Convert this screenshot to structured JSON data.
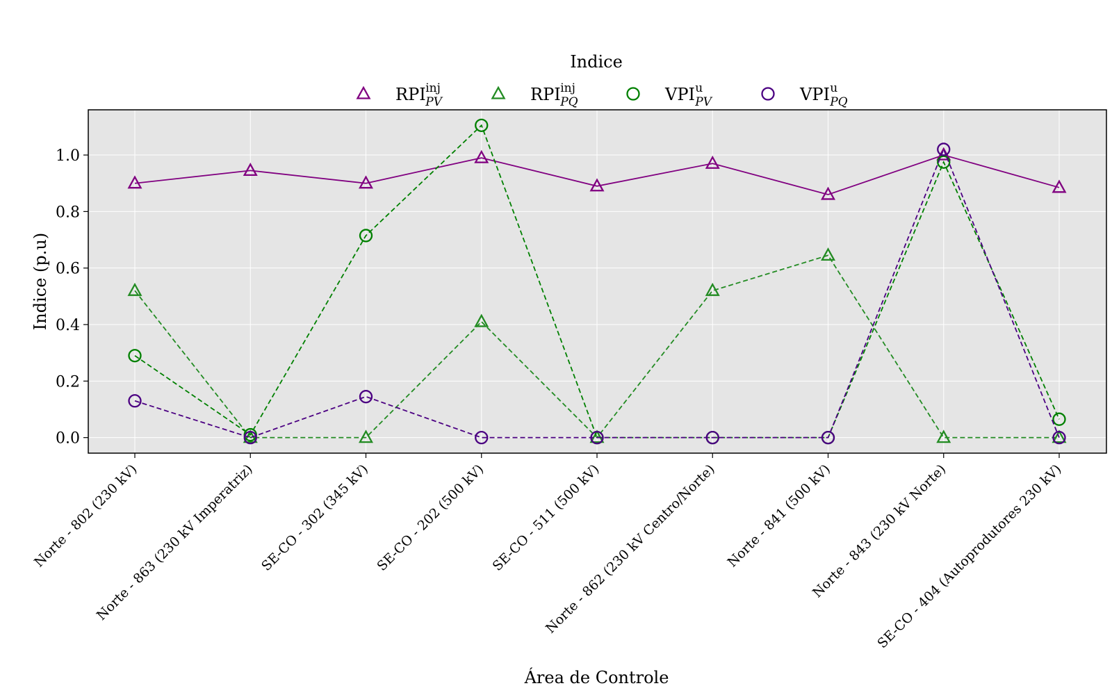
{
  "chart_data": {
    "type": "line",
    "xlabel": "Área de Controle",
    "ylabel": "Indice (p.u)",
    "legend_title": "Indice",
    "legend_placement": "top-center",
    "grid": true,
    "ylim": [
      -0.055,
      1.16
    ],
    "yticks": [
      0.0,
      0.2,
      0.4,
      0.6,
      0.8,
      1.0
    ],
    "ytick_labels": [
      "0.0",
      "0.2",
      "0.4",
      "0.6",
      "0.8",
      "1.0"
    ],
    "categories": [
      "Norte - 802 (230 kV)",
      "Norte - 863 (230 kV Imperatriz)",
      "SE-CO - 302 (345 kV)",
      "SE-CO - 202 (500 kV)",
      "SE-CO - 511 (500 kV)",
      "Norte - 862 (230 kV Centro/Norte)",
      "Norte - 841 (500 kV)",
      "Norte - 843 (230 kV Norte)",
      "SE-CO - 404 (Autoprodutores 230 kV)"
    ],
    "series": [
      {
        "name": "RPI",
        "name_sup": "inj",
        "name_sub": "PV",
        "color": "#800080",
        "marker": "triangle",
        "line": "solid",
        "values": [
          0.9,
          0.945,
          0.9,
          0.99,
          0.89,
          0.97,
          0.86,
          1.0,
          0.885
        ]
      },
      {
        "name": "RPI",
        "name_sup": "inj",
        "name_sub": "PQ",
        "color": "#228b22",
        "marker": "triangle",
        "line": "dashed",
        "values": [
          0.52,
          0.0,
          0.0,
          0.41,
          0.0,
          0.52,
          0.645,
          0.0,
          0.0
        ]
      },
      {
        "name": "VPI",
        "name_sup": "u",
        "name_sub": "PV",
        "color": "#008000",
        "marker": "circle",
        "line": "dashed",
        "values": [
          0.29,
          0.01,
          0.715,
          1.105,
          0.0,
          0.0,
          0.0,
          0.975,
          0.065
        ]
      },
      {
        "name": "VPI",
        "name_sup": "u",
        "name_sub": "PQ",
        "color": "#4b0082",
        "marker": "circle",
        "line": "dashed",
        "values": [
          0.13,
          0.0,
          0.145,
          0.0,
          0.0,
          0.0,
          0.0,
          1.02,
          0.0
        ]
      }
    ],
    "colors": {
      "plot_background": "#e5e5e5",
      "grid": "#ffffff",
      "axes": "#000000"
    }
  }
}
